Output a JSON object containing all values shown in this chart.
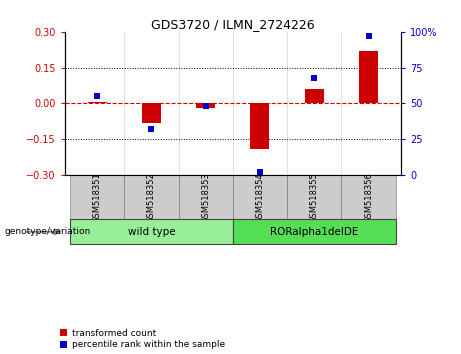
{
  "title": "GDS3720 / ILMN_2724226",
  "samples": [
    "GSM518351",
    "GSM518352",
    "GSM518353",
    "GSM518354",
    "GSM518355",
    "GSM518356"
  ],
  "red_values": [
    0.005,
    -0.082,
    -0.018,
    -0.19,
    0.062,
    0.22
  ],
  "blue_values_pct": [
    55,
    32,
    48,
    2,
    68,
    97
  ],
  "ylim_left": [
    -0.3,
    0.3
  ],
  "ylim_right": [
    0,
    100
  ],
  "yticks_left": [
    -0.3,
    -0.15,
    0,
    0.15,
    0.3
  ],
  "yticks_right": [
    0,
    25,
    50,
    75,
    100
  ],
  "ytick_labels_right": [
    "0",
    "25",
    "50",
    "75",
    "100%"
  ],
  "red_color": "#CC0000",
  "blue_color": "#0000CC",
  "genotype_groups": [
    {
      "label": "wild type",
      "start": 0,
      "end": 3,
      "color": "#99EE99"
    },
    {
      "label": "RORalpha1delDE",
      "start": 3,
      "end": 6,
      "color": "#55DD55"
    }
  ],
  "genotype_label": "genotype/variation",
  "legend_red": "transformed count",
  "legend_blue": "percentile rank within the sample",
  "bar_width": 0.35,
  "blue_marker_size": 5
}
